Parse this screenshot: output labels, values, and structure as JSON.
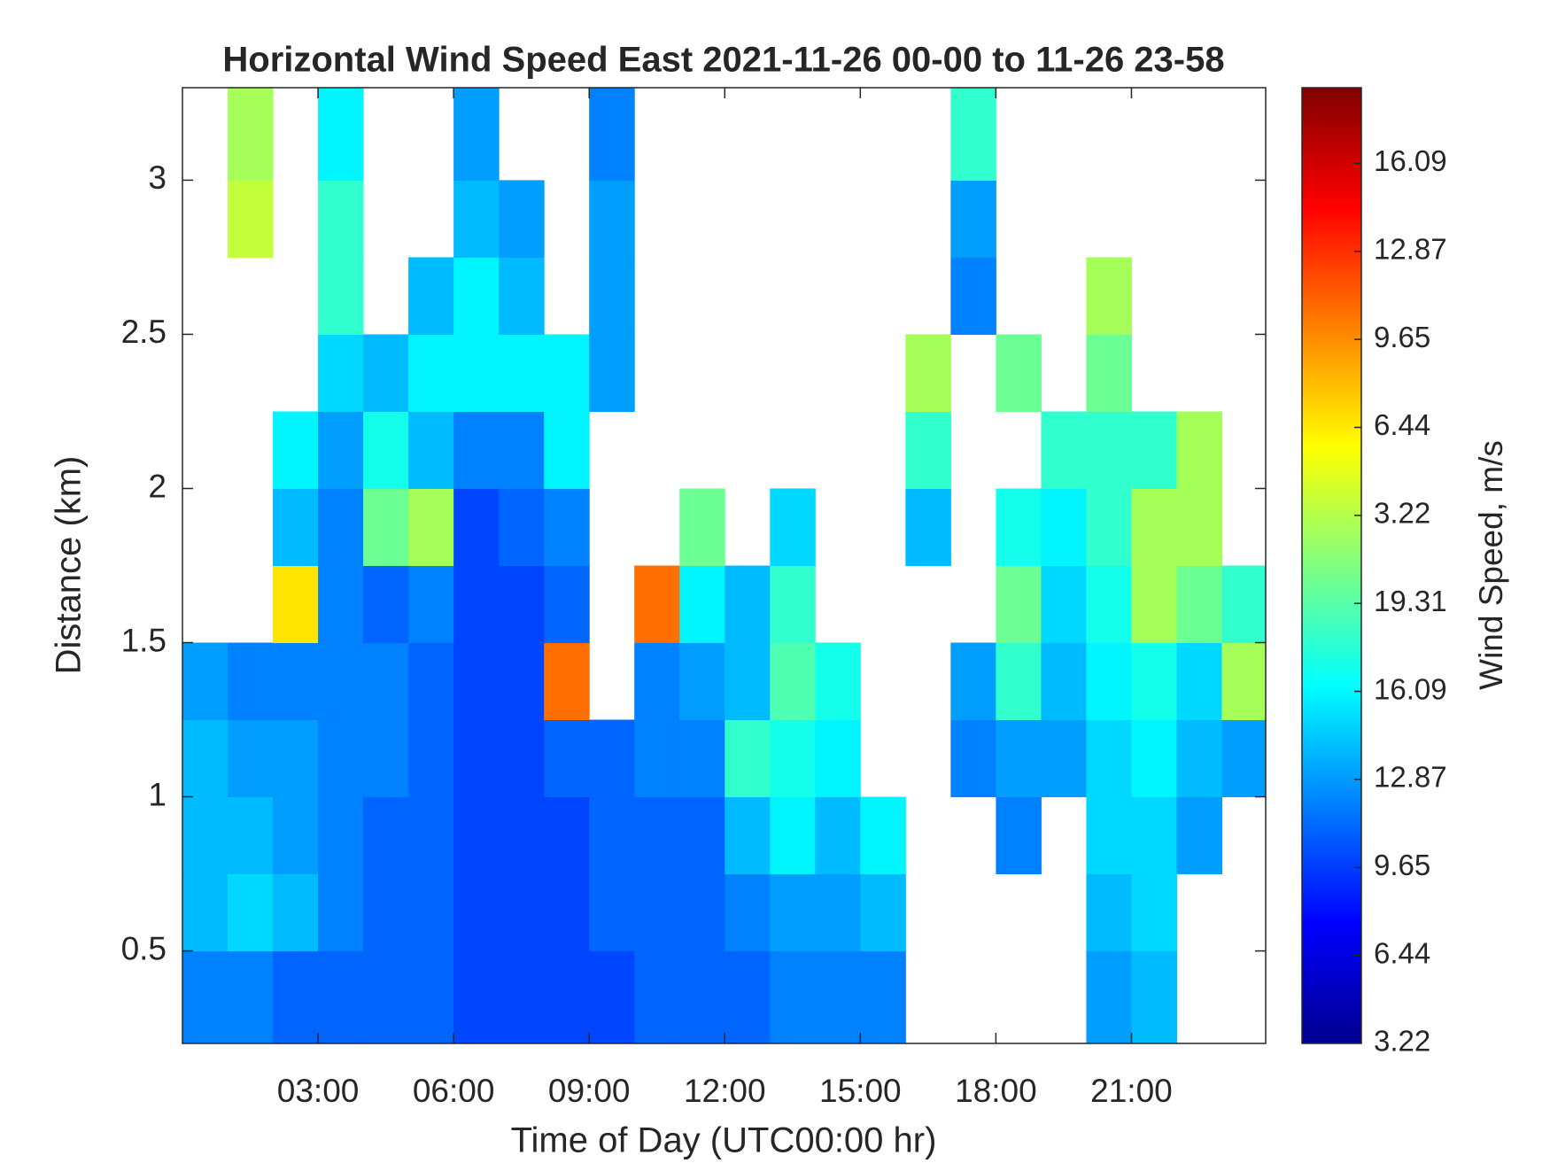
{
  "chart_data": {
    "type": "heatmap",
    "title": "Horizontal Wind Speed East 2021-11-26 00-00 to 11-26 23-58",
    "x_label": "Time of Day (UTC00:00 hr)",
    "y_label": "Distance (km)",
    "colorbar_label": "Wind Speed, m/s",
    "xlim": [
      0,
      23.97
    ],
    "ylim": [
      0.2,
      3.3
    ],
    "xticks": [
      {
        "value": 3,
        "label": "03:00"
      },
      {
        "value": 6,
        "label": "06:00"
      },
      {
        "value": 9,
        "label": "09:00"
      },
      {
        "value": 12,
        "label": "12:00"
      },
      {
        "value": 15,
        "label": "15:00"
      },
      {
        "value": 18,
        "label": "18:00"
      },
      {
        "value": 21,
        "label": "21:00"
      }
    ],
    "yticks": [
      0.5,
      1,
      1.5,
      2,
      2.5,
      3
    ],
    "clim": [
      3.22,
      38.17
    ],
    "colorbar_labels": [
      "3.22",
      "6.44",
      "9.65",
      "12.87",
      "16.09",
      "19.31",
      "3.22",
      "6.44",
      "9.65",
      "12.87",
      "16.09"
    ],
    "colormap": [
      "#00008f",
      "#0000ff",
      "#00ffff",
      "#ffff00",
      "#ff0000",
      "#800000"
    ],
    "colormap_stops": [
      0,
      0.125,
      0.375,
      0.625,
      0.875,
      1
    ],
    "x_bins": [
      0,
      1,
      2,
      3,
      4,
      5,
      6,
      7,
      8,
      9,
      10,
      11,
      12,
      13,
      14,
      15,
      16,
      17,
      18,
      19,
      20,
      21,
      22,
      23,
      23.97
    ],
    "y_bins": [
      0.2,
      0.5,
      0.75,
      1,
      1.25,
      1.5,
      1.75,
      2,
      2.25,
      2.5,
      2.75,
      3,
      3.3
    ],
    "z": [
      [
        12,
        12,
        11,
        11,
        11,
        11,
        10,
        10,
        10,
        10,
        11,
        11,
        11,
        12,
        12,
        12,
        null,
        null,
        null,
        null,
        13,
        14,
        null,
        null
      ],
      [
        14,
        15,
        14,
        12,
        11,
        11,
        10,
        10,
        10,
        11,
        11,
        11,
        12,
        13,
        13,
        14,
        null,
        null,
        null,
        null,
        14,
        15,
        null,
        null
      ],
      [
        14,
        14,
        13,
        12,
        11,
        11,
        10,
        10,
        10,
        11,
        11,
        11,
        14,
        16,
        14,
        16,
        null,
        null,
        12,
        null,
        15,
        15,
        13,
        null
      ],
      [
        14,
        13,
        13,
        12,
        12,
        11,
        10,
        10,
        11,
        11,
        12,
        12,
        18,
        17,
        16,
        null,
        null,
        12,
        13,
        13,
        15,
        16,
        14,
        13
      ],
      [
        13,
        12,
        12,
        12,
        12,
        11,
        10,
        10,
        30,
        null,
        12,
        13,
        14,
        19,
        17,
        null,
        null,
        13,
        18,
        14,
        16,
        17,
        15,
        22
      ],
      [
        null,
        null,
        26,
        12,
        11,
        12,
        10,
        10,
        11,
        null,
        30,
        16,
        14,
        18,
        null,
        null,
        null,
        null,
        20,
        15,
        17,
        22,
        20,
        18
      ],
      [
        null,
        null,
        14,
        12,
        20,
        22,
        10,
        11,
        12,
        null,
        null,
        20,
        null,
        15,
        null,
        null,
        14,
        null,
        17,
        16,
        18,
        22,
        22,
        null
      ],
      [
        null,
        null,
        16,
        13,
        17,
        14,
        12,
        12,
        16,
        null,
        null,
        null,
        null,
        null,
        null,
        null,
        18,
        null,
        null,
        18,
        18,
        18,
        22,
        null
      ],
      [
        null,
        null,
        null,
        15,
        14,
        16,
        16,
        16,
        16,
        13,
        null,
        null,
        null,
        null,
        null,
        null,
        22,
        null,
        20,
        null,
        20,
        null,
        null,
        null
      ],
      [
        null,
        null,
        null,
        18,
        null,
        14,
        16,
        14,
        null,
        13,
        null,
        null,
        null,
        null,
        null,
        null,
        null,
        12,
        null,
        null,
        22,
        null,
        null,
        null
      ],
      [
        null,
        23,
        null,
        18,
        null,
        null,
        14,
        13,
        null,
        13,
        null,
        null,
        null,
        null,
        null,
        null,
        null,
        13,
        null,
        null,
        null,
        null,
        null,
        null
      ],
      [
        null,
        22,
        null,
        16,
        null,
        null,
        13,
        null,
        null,
        12,
        null,
        null,
        null,
        null,
        null,
        null,
        null,
        18,
        null,
        null,
        null,
        null,
        null,
        null
      ]
    ]
  }
}
